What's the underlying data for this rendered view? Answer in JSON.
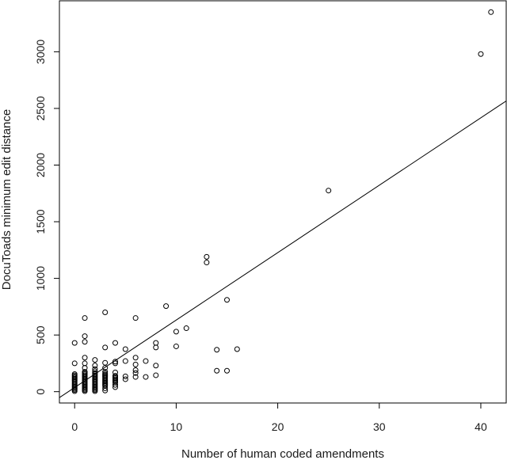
{
  "chart_data": {
    "type": "scatter",
    "xlabel": "Number of human coded amendments",
    "ylabel": "DocuToads minimum edit distance",
    "xlim": [
      -1.5,
      42.5
    ],
    "ylim": [
      -100,
      3450
    ],
    "x_ticks": [
      0,
      10,
      20,
      30,
      40
    ],
    "y_ticks": [
      0,
      500,
      1000,
      1500,
      2000,
      2500,
      3000
    ],
    "grid": false,
    "legend": "none",
    "fit_line": {
      "intercept": 37,
      "slope": 59.5
    },
    "points": [
      {
        "x": 0,
        "y": 5
      },
      {
        "x": 0,
        "y": 15
      },
      {
        "x": 0,
        "y": 25
      },
      {
        "x": 0,
        "y": 35
      },
      {
        "x": 0,
        "y": 45
      },
      {
        "x": 0,
        "y": 55
      },
      {
        "x": 0,
        "y": 65
      },
      {
        "x": 0,
        "y": 75
      },
      {
        "x": 0,
        "y": 85
      },
      {
        "x": 0,
        "y": 95
      },
      {
        "x": 0,
        "y": 105
      },
      {
        "x": 0,
        "y": 115
      },
      {
        "x": 0,
        "y": 125
      },
      {
        "x": 0,
        "y": 135
      },
      {
        "x": 0,
        "y": 145
      },
      {
        "x": 0,
        "y": 155
      },
      {
        "x": 0,
        "y": 250
      },
      {
        "x": 0,
        "y": 430
      },
      {
        "x": 1,
        "y": 5
      },
      {
        "x": 1,
        "y": 15
      },
      {
        "x": 1,
        "y": 25
      },
      {
        "x": 1,
        "y": 35
      },
      {
        "x": 1,
        "y": 45
      },
      {
        "x": 1,
        "y": 55
      },
      {
        "x": 1,
        "y": 65
      },
      {
        "x": 1,
        "y": 75
      },
      {
        "x": 1,
        "y": 85
      },
      {
        "x": 1,
        "y": 95
      },
      {
        "x": 1,
        "y": 105
      },
      {
        "x": 1,
        "y": 115
      },
      {
        "x": 1,
        "y": 125
      },
      {
        "x": 1,
        "y": 135
      },
      {
        "x": 1,
        "y": 145
      },
      {
        "x": 1,
        "y": 155
      },
      {
        "x": 1,
        "y": 165
      },
      {
        "x": 1,
        "y": 175
      },
      {
        "x": 1,
        "y": 210
      },
      {
        "x": 1,
        "y": 250
      },
      {
        "x": 1,
        "y": 300
      },
      {
        "x": 1,
        "y": 440
      },
      {
        "x": 1,
        "y": 490
      },
      {
        "x": 1,
        "y": 650
      },
      {
        "x": 2,
        "y": 5
      },
      {
        "x": 2,
        "y": 15
      },
      {
        "x": 2,
        "y": 25
      },
      {
        "x": 2,
        "y": 35
      },
      {
        "x": 2,
        "y": 45
      },
      {
        "x": 2,
        "y": 55
      },
      {
        "x": 2,
        "y": 65
      },
      {
        "x": 2,
        "y": 75
      },
      {
        "x": 2,
        "y": 85
      },
      {
        "x": 2,
        "y": 95
      },
      {
        "x": 2,
        "y": 105
      },
      {
        "x": 2,
        "y": 115
      },
      {
        "x": 2,
        "y": 125
      },
      {
        "x": 2,
        "y": 135
      },
      {
        "x": 2,
        "y": 145
      },
      {
        "x": 2,
        "y": 155
      },
      {
        "x": 2,
        "y": 165
      },
      {
        "x": 2,
        "y": 180
      },
      {
        "x": 2,
        "y": 200
      },
      {
        "x": 2,
        "y": 230
      },
      {
        "x": 2,
        "y": 280
      },
      {
        "x": 3,
        "y": 10
      },
      {
        "x": 3,
        "y": 30
      },
      {
        "x": 3,
        "y": 50
      },
      {
        "x": 3,
        "y": 60
      },
      {
        "x": 3,
        "y": 70
      },
      {
        "x": 3,
        "y": 80
      },
      {
        "x": 3,
        "y": 90
      },
      {
        "x": 3,
        "y": 100
      },
      {
        "x": 3,
        "y": 110
      },
      {
        "x": 3,
        "y": 120
      },
      {
        "x": 3,
        "y": 130
      },
      {
        "x": 3,
        "y": 140
      },
      {
        "x": 3,
        "y": 150
      },
      {
        "x": 3,
        "y": 160
      },
      {
        "x": 3,
        "y": 175
      },
      {
        "x": 3,
        "y": 210
      },
      {
        "x": 3,
        "y": 255
      },
      {
        "x": 3,
        "y": 390
      },
      {
        "x": 3,
        "y": 700
      },
      {
        "x": 4,
        "y": 40
      },
      {
        "x": 4,
        "y": 60
      },
      {
        "x": 4,
        "y": 80
      },
      {
        "x": 4,
        "y": 90
      },
      {
        "x": 4,
        "y": 100
      },
      {
        "x": 4,
        "y": 110
      },
      {
        "x": 4,
        "y": 120
      },
      {
        "x": 4,
        "y": 130
      },
      {
        "x": 4,
        "y": 140
      },
      {
        "x": 4,
        "y": 170
      },
      {
        "x": 4,
        "y": 250
      },
      {
        "x": 4,
        "y": 265
      },
      {
        "x": 4,
        "y": 430
      },
      {
        "x": 5,
        "y": 110
      },
      {
        "x": 5,
        "y": 135
      },
      {
        "x": 5,
        "y": 270
      },
      {
        "x": 5,
        "y": 375
      },
      {
        "x": 6,
        "y": 130
      },
      {
        "x": 6,
        "y": 165
      },
      {
        "x": 6,
        "y": 190
      },
      {
        "x": 6,
        "y": 240
      },
      {
        "x": 6,
        "y": 300
      },
      {
        "x": 6,
        "y": 650
      },
      {
        "x": 7,
        "y": 130
      },
      {
        "x": 7,
        "y": 270
      },
      {
        "x": 8,
        "y": 145
      },
      {
        "x": 8,
        "y": 230
      },
      {
        "x": 8,
        "y": 390
      },
      {
        "x": 8,
        "y": 430
      },
      {
        "x": 9,
        "y": 755
      },
      {
        "x": 10,
        "y": 400
      },
      {
        "x": 10,
        "y": 530
      },
      {
        "x": 11,
        "y": 560
      },
      {
        "x": 13,
        "y": 1140
      },
      {
        "x": 13,
        "y": 1190
      },
      {
        "x": 14,
        "y": 185
      },
      {
        "x": 14,
        "y": 370
      },
      {
        "x": 15,
        "y": 185
      },
      {
        "x": 15,
        "y": 810
      },
      {
        "x": 16,
        "y": 375
      },
      {
        "x": 25,
        "y": 1775
      },
      {
        "x": 40,
        "y": 2980
      },
      {
        "x": 41,
        "y": 3350
      }
    ]
  }
}
